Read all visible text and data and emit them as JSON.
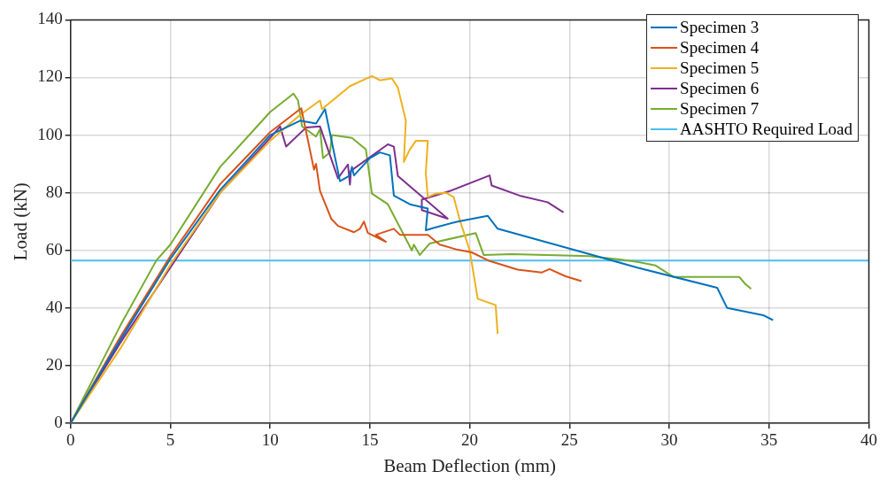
{
  "chart_data": {
    "type": "line",
    "xlabel": "Beam Deflection (mm)",
    "ylabel": "Load (kN)",
    "xlim": [
      0,
      40
    ],
    "ylim": [
      0,
      140
    ],
    "xticks": [
      0,
      5,
      10,
      15,
      20,
      25,
      30,
      35,
      40
    ],
    "yticks": [
      0,
      20,
      40,
      60,
      80,
      100,
      120,
      140
    ],
    "grid": true,
    "legend": "top right",
    "marker": "none",
    "line_style": "solid",
    "series": [
      {
        "name": "Specimen 3",
        "color": "#0072bd",
        "x": [
          0,
          2.5,
          5,
          7.5,
          10,
          11.5,
          12.3,
          12.75,
          13.5,
          14,
          14.1,
          14.2,
          15,
          15.5,
          16,
          16.2,
          17,
          17.9,
          17.8,
          18.3,
          19.4,
          20.9,
          21.4,
          26,
          28.4,
          32.4,
          32.9,
          34.7,
          35.2
        ],
        "values": [
          0,
          29,
          57,
          81,
          100,
          105,
          104,
          109,
          84,
          86,
          89,
          86,
          92,
          94,
          93,
          79,
          76,
          74.5,
          67,
          68,
          70,
          72,
          67.5,
          58.7,
          54,
          47,
          40,
          37.5,
          35.8
        ]
      },
      {
        "name": "Specimen 4",
        "color": "#d95319",
        "x": [
          0,
          2.5,
          5,
          7.5,
          10,
          11.56,
          12.2,
          12.3,
          12.5,
          13.06,
          13.4,
          14.2,
          14.5,
          14.7,
          14.9,
          15.8,
          15.3,
          16.2,
          16.5,
          17.9,
          18.5,
          19.4,
          20.1,
          21,
          22.4,
          23.6,
          24,
          24.8,
          25.6
        ],
        "values": [
          0,
          30,
          58,
          83,
          101,
          109.3,
          88,
          90,
          80.6,
          71,
          68.5,
          66.3,
          67.5,
          70,
          66,
          63,
          65.4,
          67.5,
          65.4,
          65.4,
          62,
          60.2,
          59.3,
          56.3,
          53.3,
          52.3,
          53.5,
          51,
          49.3
        ]
      },
      {
        "name": "Specimen 5",
        "color": "#edb120",
        "x": [
          0,
          2.5,
          5,
          7.5,
          10,
          11.5,
          12.5,
          12.6,
          14,
          15.1,
          15.5,
          16.1,
          16.4,
          16.8,
          16.7,
          17,
          17.3,
          17.9,
          17.8,
          17.9,
          18.3,
          18.8,
          19.2,
          19.5,
          20,
          20.4,
          21.3,
          21.4
        ],
        "values": [
          0,
          26,
          55,
          80,
          98,
          107,
          112,
          109,
          117,
          120.5,
          119,
          119.7,
          116.5,
          105,
          90.7,
          95,
          98,
          98,
          86.7,
          78.5,
          79.7,
          80,
          78.5,
          70.6,
          60,
          43.2,
          41,
          31
        ]
      },
      {
        "name": "Specimen 6",
        "color": "#7e2f8e",
        "x": [
          0,
          2.5,
          5,
          7.5,
          10,
          10.5,
          10.8,
          11.8,
          12.5,
          13.4,
          13.9,
          14,
          14.05,
          15.9,
          16.2,
          16.4,
          18.9,
          17.6,
          17.6,
          19,
          21,
          21.1,
          22.5,
          23.9,
          24.7
        ],
        "values": [
          0,
          28,
          54,
          80,
          99,
          103,
          96,
          102.6,
          103,
          85,
          89.8,
          82.8,
          87.6,
          96.8,
          96,
          85.8,
          71,
          74,
          77.6,
          80.6,
          86,
          82.5,
          79,
          76.7,
          73.2
        ]
      },
      {
        "name": "Specimen 7",
        "color": "#77ac30",
        "x": [
          0,
          2.5,
          4.3,
          5,
          7.5,
          10,
          11.17,
          11.4,
          11.6,
          12.3,
          12.5,
          12.65,
          13,
          13.1,
          14.1,
          14.8,
          15.1,
          15.9,
          17.1,
          17.2,
          17.5,
          18,
          20.3,
          20.7,
          22.1,
          26,
          27.6,
          28.4,
          29.3,
          30.2,
          33.5,
          33.8,
          34.1
        ],
        "values": [
          0,
          34,
          56.5,
          62,
          89,
          108,
          114.4,
          112,
          103,
          99.5,
          102,
          92,
          94,
          100,
          99,
          95,
          79.7,
          76,
          60,
          62,
          58.4,
          62.4,
          66,
          58.4,
          58.7,
          58,
          56.8,
          56,
          54.8,
          50.8,
          50.8,
          48.4,
          46.6
        ]
      }
    ],
    "ref_lines": [
      {
        "axis": "y",
        "value": 56.5,
        "label": "AASHTO Required Load",
        "color": "#4dbeee"
      }
    ]
  }
}
